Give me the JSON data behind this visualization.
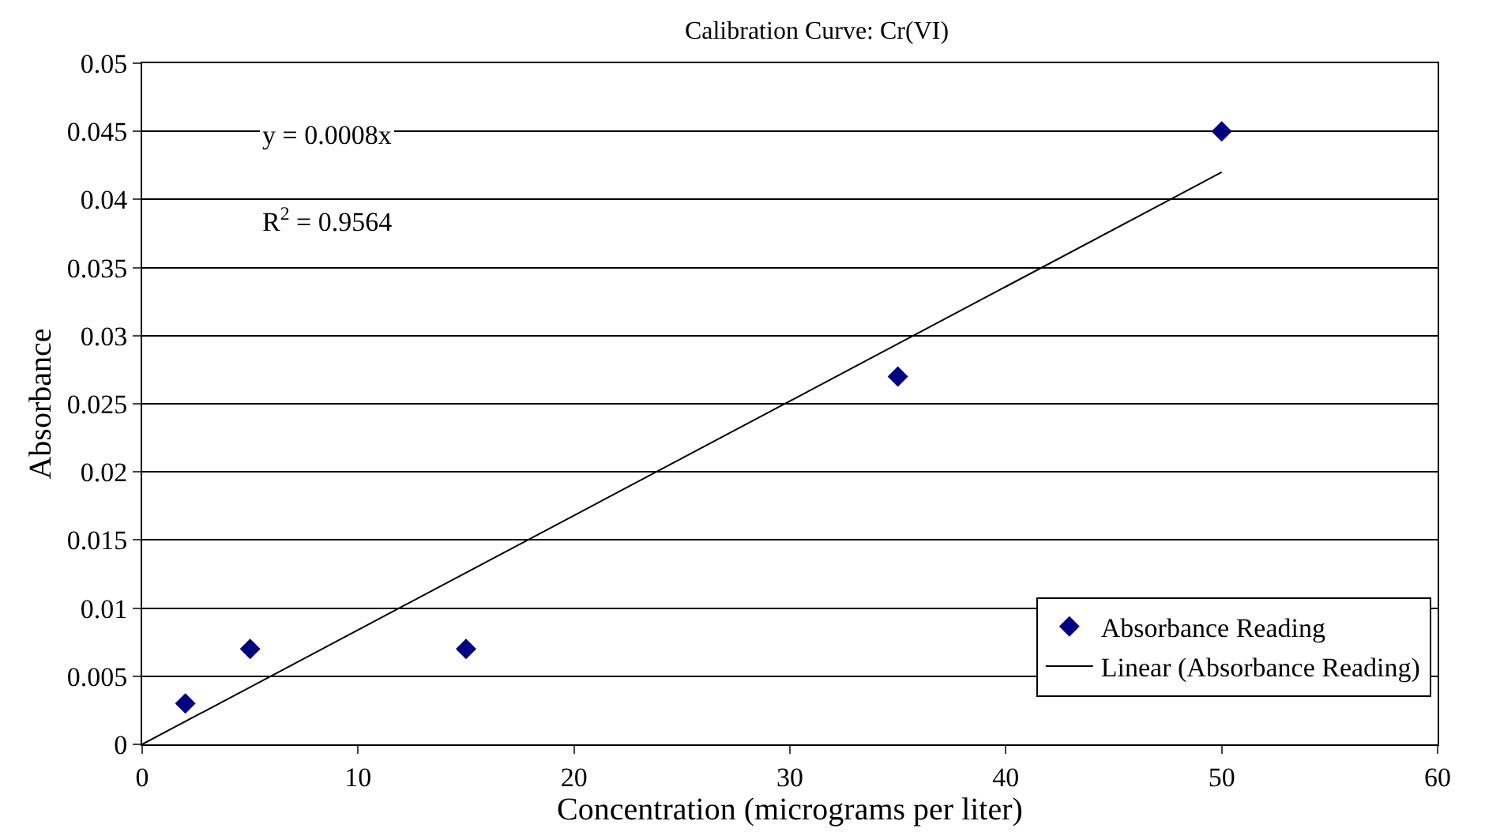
{
  "chart_data": {
    "type": "scatter",
    "title": "Calibration Curve: Cr(VI)",
    "xlabel": "Concentration (micrograms per liter)",
    "ylabel": "Absorbance",
    "annotations": [
      "y = 0.0008x",
      "R$^{2}$ = 0.9564"
    ],
    "series": [
      {
        "name": "Absorbance Reading",
        "color": "#000080",
        "marker": "diamond",
        "x": [
          2,
          5,
          15,
          35,
          50
        ],
        "values": [
          0.003,
          0.007,
          0.007,
          0.027,
          0.045
        ]
      },
      {
        "name": "Linear (Absorbance Reading)",
        "type": "line",
        "color": "#000000",
        "line_style": "solid",
        "x": [
          0,
          50
        ],
        "values": [
          0,
          0.042
        ]
      }
    ],
    "xlim": [
      0,
      60
    ],
    "xticks": [
      0,
      10,
      20,
      30,
      40,
      50,
      60
    ],
    "ylim": [
      0,
      0.05
    ],
    "yticks": [
      0,
      0.005,
      0.01,
      0.015,
      0.02,
      0.025,
      0.03,
      0.035,
      0.04,
      0.045,
      0.05
    ],
    "grid": "y",
    "legend": "bottom right"
  }
}
